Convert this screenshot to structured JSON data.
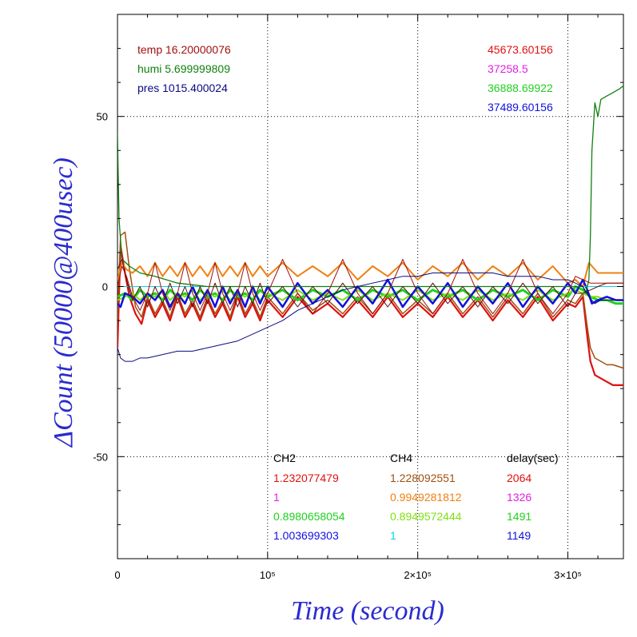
{
  "chart_data": {
    "type": "line",
    "xlabel": "Time (second)",
    "ylabel": "ΔCount (50000@400usec)",
    "xlim": [
      0,
      337000
    ],
    "ylim": [
      -80,
      80
    ],
    "x_ticks": [
      {
        "value": 0,
        "label": "0"
      },
      {
        "value": 100000,
        "label": "10⁵"
      },
      {
        "value": 200000,
        "label": "2×10⁵"
      },
      {
        "value": 300000,
        "label": "3×10⁵"
      }
    ],
    "y_ticks": [
      {
        "value": -50,
        "label": "-50"
      },
      {
        "value": 0,
        "label": "0"
      },
      {
        "value": 50,
        "label": "50"
      }
    ],
    "grid": true,
    "env_legend": [
      {
        "text": "temp 16.20000076",
        "color": "#a01010"
      },
      {
        "text": "humi 5.699999809",
        "color": "#108010"
      },
      {
        "text": "pres 1015.400024",
        "color": "#0a0a80"
      }
    ],
    "base_values": [
      {
        "text": "45673.60156",
        "color": "#e01010"
      },
      {
        "text": "37258.5",
        "color": "#e020e0"
      },
      {
        "text": "36888.69922",
        "color": "#20d020"
      },
      {
        "text": "37489.60156",
        "color": "#1010e0"
      }
    ],
    "ratio_table": {
      "headers": [
        "CH2",
        "CH4",
        "delay(sec)"
      ],
      "rows": [
        {
          "ch2": "1.232077479",
          "ch2_color": "#e01010",
          "ch4": "1.228092551",
          "ch4_color": "#a05010",
          "delay": "2064",
          "delay_color": "#e01010"
        },
        {
          "ch2": "1",
          "ch2_color": "#e020e0",
          "ch4": "0.9949281812",
          "ch4_color": "#f08010",
          "delay": "1326",
          "delay_color": "#e020e0"
        },
        {
          "ch2": "0.8980658054",
          "ch2_color": "#20d020",
          "ch4": "0.8949572444",
          "ch4_color": "#80e010",
          "delay": "1491",
          "delay_color": "#20d020"
        },
        {
          "ch2": "1.003699303",
          "ch2_color": "#1010e0",
          "ch4": "1",
          "ch4_color": "#10d0e0",
          "delay": "1149",
          "delay_color": "#1010e0"
        }
      ]
    },
    "series": [
      {
        "color": "#e01010",
        "width": 2.2,
        "x": [
          0,
          2000,
          5000,
          8000,
          12000,
          16000,
          20000,
          25000,
          30000,
          35000,
          40000,
          45000,
          50000,
          55000,
          60000,
          65000,
          70000,
          75000,
          80000,
          85000,
          90000,
          95000,
          100000,
          110000,
          120000,
          130000,
          140000,
          150000,
          160000,
          170000,
          180000,
          190000,
          200000,
          210000,
          220000,
          230000,
          240000,
          250000,
          260000,
          270000,
          280000,
          290000,
          300000,
          305000,
          310000,
          313000,
          315000,
          318000,
          322000,
          326000,
          330000,
          337000
        ],
        "values": [
          -18,
          12,
          4,
          -3,
          -8,
          -11,
          -4,
          -9,
          -5,
          -10,
          -3,
          -9,
          -5,
          -10,
          -4,
          -9,
          -5,
          -10,
          -3,
          -9,
          -5,
          -10,
          -4,
          -9,
          -3,
          -8,
          -5,
          -9,
          -4,
          -9,
          -3,
          -9,
          -5,
          -9,
          -3,
          -9,
          -4,
          -10,
          -4,
          -9,
          -3,
          -10,
          -5,
          -6,
          -3,
          -15,
          -22,
          -26,
          -27,
          -28,
          -29,
          -29
        ]
      },
      {
        "color": "#a05010",
        "width": 1.5,
        "x": [
          0,
          2000,
          5000,
          8000,
          12000,
          16000,
          20000,
          25000,
          30000,
          35000,
          40000,
          45000,
          50000,
          55000,
          60000,
          65000,
          70000,
          75000,
          80000,
          85000,
          90000,
          95000,
          100000,
          110000,
          120000,
          130000,
          140000,
          150000,
          160000,
          170000,
          180000,
          190000,
          200000,
          210000,
          220000,
          230000,
          240000,
          250000,
          260000,
          270000,
          280000,
          290000,
          300000,
          305000,
          310000,
          313000,
          315000,
          318000,
          322000,
          326000,
          330000,
          337000
        ],
        "values": [
          -10,
          15,
          16,
          5,
          -6,
          -9,
          -3,
          -8,
          -4,
          -9,
          -2,
          -8,
          -4,
          -9,
          -3,
          -8,
          -4,
          -9,
          -2,
          -8,
          -4,
          -9,
          -3,
          -8,
          -2,
          -7,
          -4,
          -8,
          -3,
          -8,
          -2,
          -8,
          -4,
          -8,
          -2,
          -8,
          -3,
          -9,
          -3,
          -8,
          -2,
          -9,
          -4,
          -5,
          -2,
          -12,
          -18,
          -21,
          -22,
          -23,
          -23,
          -24
        ]
      },
      {
        "color": "#f08010",
        "width": 2.0,
        "x": [
          0,
          3000,
          6000,
          10000,
          15000,
          20000,
          25000,
          30000,
          35000,
          40000,
          45000,
          50000,
          55000,
          60000,
          65000,
          70000,
          75000,
          80000,
          85000,
          90000,
          95000,
          100000,
          110000,
          120000,
          130000,
          140000,
          150000,
          160000,
          170000,
          180000,
          190000,
          200000,
          210000,
          220000,
          230000,
          240000,
          250000,
          260000,
          270000,
          280000,
          290000,
          300000,
          305000,
          310000,
          314000,
          316000,
          320000,
          326000,
          332000,
          337000
        ],
        "values": [
          2,
          7,
          5,
          4,
          6,
          3,
          7,
          3,
          6,
          3,
          7,
          3,
          6,
          3,
          7,
          3,
          6,
          3,
          7,
          3,
          6,
          3,
          7,
          3,
          6,
          3,
          7,
          2,
          6,
          3,
          7,
          2,
          6,
          3,
          7,
          2,
          6,
          3,
          7,
          2,
          6,
          1,
          2,
          0,
          7,
          6,
          4,
          4,
          4,
          4
        ]
      },
      {
        "color": "#e020e0",
        "width": 1.0,
        "x": [
          0,
          337000
        ],
        "values": [
          0,
          0
        ]
      },
      {
        "color": "#20d020",
        "width": 3.0,
        "x": [
          0,
          5000,
          10000,
          15000,
          20000,
          25000,
          30000,
          35000,
          40000,
          45000,
          50000,
          55000,
          60000,
          65000,
          70000,
          75000,
          80000,
          85000,
          90000,
          95000,
          100000,
          110000,
          120000,
          130000,
          140000,
          150000,
          160000,
          170000,
          180000,
          190000,
          200000,
          210000,
          220000,
          230000,
          240000,
          250000,
          260000,
          270000,
          280000,
          290000,
          300000,
          305000,
          310000,
          315000,
          320000,
          326000,
          332000,
          337000
        ],
        "values": [
          -3,
          -2,
          -4,
          -1,
          -3,
          -2,
          -4,
          -1,
          -3,
          -2,
          -4,
          -1,
          -3,
          -2,
          -4,
          -1,
          -3,
          -2,
          -4,
          -1,
          -3,
          -1,
          -4,
          -1,
          -3,
          -1,
          -4,
          -1,
          -3,
          -1,
          -4,
          -1,
          -3,
          -1,
          -4,
          -1,
          -3,
          -1,
          -4,
          -1,
          -3,
          0,
          -1,
          -3,
          -4,
          -4,
          -5,
          -5
        ]
      },
      {
        "color": "#80e010",
        "width": 2.0,
        "x": [
          0,
          5000,
          10000,
          15000,
          20000,
          25000,
          30000,
          35000,
          40000,
          45000,
          50000,
          55000,
          60000,
          65000,
          70000,
          75000,
          80000,
          85000,
          90000,
          95000,
          100000,
          110000,
          120000,
          130000,
          140000,
          150000,
          160000,
          170000,
          180000,
          190000,
          200000,
          210000,
          220000,
          230000,
          240000,
          250000,
          260000,
          270000,
          280000,
          290000,
          300000,
          305000,
          310000,
          315000,
          320000,
          326000,
          332000,
          337000
        ],
        "values": [
          -4,
          -3,
          -2,
          -4,
          -2,
          -3,
          -1,
          -4,
          -2,
          -3,
          -1,
          -4,
          -2,
          -3,
          -1,
          -4,
          -2,
          -3,
          -1,
          -4,
          -2,
          -4,
          -1,
          -4,
          -2,
          -4,
          -1,
          -4,
          -2,
          -4,
          -1,
          -4,
          -2,
          -4,
          -1,
          -4,
          -2,
          -4,
          -1,
          -4,
          -2,
          -1,
          -2,
          -3,
          -3,
          -4,
          -4,
          -4
        ]
      },
      {
        "color": "#1010e0",
        "width": 2.5,
        "x": [
          0,
          2000,
          5000,
          10000,
          15000,
          20000,
          25000,
          30000,
          35000,
          40000,
          45000,
          50000,
          55000,
          60000,
          65000,
          70000,
          75000,
          80000,
          85000,
          90000,
          95000,
          100000,
          110000,
          120000,
          130000,
          140000,
          150000,
          160000,
          170000,
          180000,
          190000,
          200000,
          210000,
          220000,
          230000,
          240000,
          250000,
          260000,
          270000,
          280000,
          290000,
          300000,
          305000,
          310000,
          313000,
          316000,
          320000,
          326000,
          332000,
          337000
        ],
        "values": [
          -5,
          -6,
          -2,
          -3,
          -5,
          -2,
          -4,
          -1,
          -6,
          -2,
          -5,
          0,
          -5,
          -1,
          -6,
          0,
          -5,
          -1,
          -6,
          0,
          -5,
          0,
          -6,
          1,
          -5,
          -1,
          -6,
          0,
          -5,
          2,
          -6,
          0,
          -5,
          1,
          -6,
          0,
          -5,
          1,
          -6,
          0,
          -5,
          1,
          -2,
          2,
          -1,
          -5,
          -4,
          -3,
          -4,
          -4
        ]
      },
      {
        "color": "#10d0e0",
        "width": 1.0,
        "x": [
          0,
          337000
        ],
        "values": [
          0,
          0
        ]
      },
      {
        "color": "#108010",
        "width": 1.3,
        "x": [
          0,
          1000,
          3000,
          8000,
          15000,
          25000,
          40000,
          60000,
          80000,
          100000,
          140000,
          180000,
          220000,
          260000,
          300000,
          310000,
          312000,
          314000,
          315000,
          316000,
          318000,
          320000,
          322000,
          326000,
          330000,
          334000,
          337000
        ],
        "values": [
          45,
          20,
          8,
          6,
          4,
          3,
          1,
          0,
          0,
          0,
          0,
          0,
          0,
          0,
          0,
          0,
          -2,
          2,
          15,
          40,
          54,
          50,
          55,
          56,
          57,
          58,
          59
        ]
      },
      {
        "color": "#5a1010",
        "width": 1.0,
        "x": [
          0,
          3000,
          6000,
          10000,
          15000,
          20000,
          25000,
          30000,
          35000,
          40000,
          45000,
          50000,
          55000,
          60000,
          65000,
          70000,
          75000,
          80000,
          85000,
          90000,
          95000,
          100000,
          110000,
          120000,
          130000,
          140000,
          150000,
          160000,
          170000,
          180000,
          190000,
          200000,
          210000,
          220000,
          230000,
          240000,
          250000,
          260000,
          270000,
          280000,
          290000,
          300000,
          305000,
          310000,
          315000,
          320000,
          326000,
          332000,
          337000
        ],
        "values": [
          5,
          8,
          2,
          -4,
          0,
          -6,
          0,
          -5,
          1,
          -5,
          0,
          -6,
          0,
          -5,
          1,
          -5,
          0,
          -6,
          0,
          -5,
          1,
          -5,
          0,
          -6,
          0,
          -5,
          1,
          -5,
          0,
          -6,
          0,
          -5,
          1,
          -5,
          0,
          -6,
          0,
          -5,
          1,
          -5,
          0,
          -6,
          -2,
          -2,
          -1,
          0,
          1,
          1,
          1
        ]
      },
      {
        "color": "#a01010",
        "width": 1.0,
        "x": [
          0,
          3000,
          6000,
          10000,
          15000,
          20000,
          25000,
          30000,
          35000,
          40000,
          45000,
          50000,
          55000,
          60000,
          65000,
          70000,
          75000,
          80000,
          85000,
          90000,
          95000,
          100000,
          110000,
          120000,
          130000,
          140000,
          150000,
          160000,
          170000,
          180000,
          190000,
          200000,
          210000,
          220000,
          230000,
          240000,
          250000,
          260000,
          270000,
          280000,
          290000,
          300000,
          305000,
          310000,
          315000,
          320000,
          326000,
          332000,
          337000
        ],
        "values": [
          0,
          6,
          3,
          -3,
          -7,
          -2,
          7,
          -2,
          -7,
          -2,
          7,
          -2,
          -7,
          -2,
          7,
          -2,
          -7,
          -2,
          7,
          -2,
          -7,
          -2,
          8,
          -2,
          -8,
          -2,
          8,
          -2,
          -8,
          -2,
          8,
          -2,
          -8,
          -2,
          8,
          -2,
          -8,
          -2,
          8,
          -2,
          -8,
          -2,
          3,
          2,
          1,
          1,
          1,
          1,
          1
        ]
      },
      {
        "color": "#0a0a80",
        "width": 1.0,
        "x": [
          0,
          2000,
          5000,
          10000,
          15000,
          20000,
          30000,
          40000,
          50000,
          60000,
          70000,
          80000,
          90000,
          100000,
          110000,
          120000,
          130000,
          140000,
          150000,
          160000,
          170000,
          180000,
          190000,
          200000,
          210000,
          220000,
          230000,
          240000,
          250000,
          260000,
          270000,
          280000,
          290000,
          300000,
          305000,
          310000,
          314000,
          318000,
          322000,
          326000,
          330000,
          337000
        ],
        "values": [
          -18,
          -21,
          -22,
          -22,
          -21,
          -21,
          -20,
          -19,
          -19,
          -18,
          -17,
          -16,
          -14,
          -12,
          -10,
          -7,
          -5,
          -3,
          -1,
          0,
          1,
          2,
          3,
          3,
          4,
          4,
          4,
          4,
          4,
          3,
          3,
          3,
          2,
          2,
          1,
          0,
          -3,
          -5,
          -4,
          -4,
          -4,
          -4
        ]
      }
    ]
  }
}
